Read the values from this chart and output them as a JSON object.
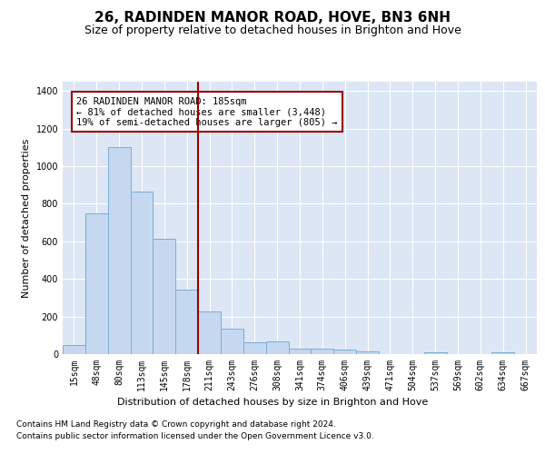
{
  "title": "26, RADINDEN MANOR ROAD, HOVE, BN3 6NH",
  "subtitle": "Size of property relative to detached houses in Brighton and Hove",
  "xlabel": "Distribution of detached houses by size in Brighton and Hove",
  "ylabel": "Number of detached properties",
  "footnote1": "Contains HM Land Registry data © Crown copyright and database right 2024.",
  "footnote2": "Contains public sector information licensed under the Open Government Licence v3.0.",
  "categories": [
    "15sqm",
    "48sqm",
    "80sqm",
    "113sqm",
    "145sqm",
    "178sqm",
    "211sqm",
    "243sqm",
    "276sqm",
    "308sqm",
    "341sqm",
    "374sqm",
    "406sqm",
    "439sqm",
    "471sqm",
    "504sqm",
    "537sqm",
    "569sqm",
    "602sqm",
    "634sqm",
    "667sqm"
  ],
  "values": [
    50,
    750,
    1100,
    865,
    615,
    345,
    225,
    135,
    62,
    70,
    30,
    30,
    22,
    14,
    0,
    0,
    12,
    0,
    0,
    12,
    0
  ],
  "bar_color": "#c5d8f0",
  "bar_edge_color": "#7aadd4",
  "vline_color": "#990000",
  "annotation_line1": "26 RADINDEN MANOR ROAD: 185sqm",
  "annotation_line2": "← 81% of detached houses are smaller (3,448)",
  "annotation_line3": "19% of semi-detached houses are larger (805) →",
  "annotation_box_facecolor": "#ffffff",
  "annotation_box_edgecolor": "#990000",
  "ylim": [
    0,
    1450
  ],
  "yticks": [
    0,
    200,
    400,
    600,
    800,
    1000,
    1200,
    1400
  ],
  "bg_color": "#dce6f5",
  "grid_color": "#ffffff",
  "fig_facecolor": "#ffffff",
  "title_fontsize": 11,
  "subtitle_fontsize": 9,
  "axis_label_fontsize": 8,
  "tick_fontsize": 7,
  "annotation_fontsize": 7.5,
  "footnote_fontsize": 6.5
}
